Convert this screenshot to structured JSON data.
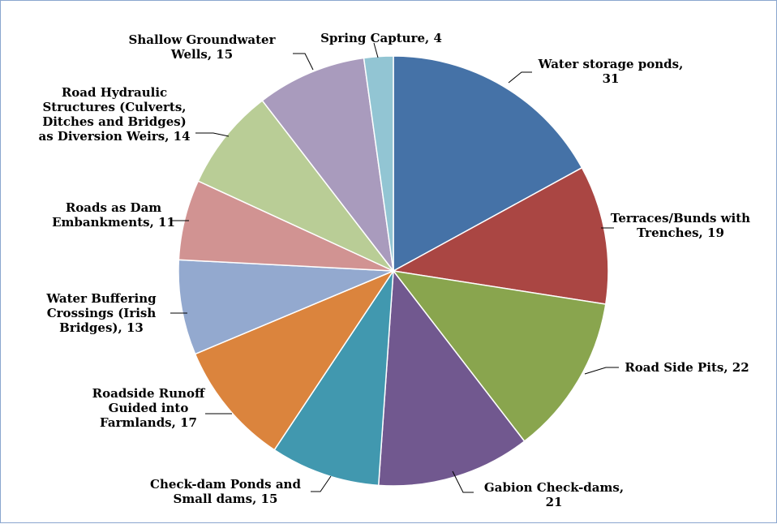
{
  "chart_data": {
    "type": "pie",
    "categories": [
      "Water storage ponds",
      "Terraces/Bunds with Trenches",
      "Road Side Pits",
      "Gabion Check-dams",
      "Check-dam Ponds and Small dams",
      "Roadside Runoff Guided into Farmlands",
      "Water Buffering Crossings (Irish Bridges)",
      "Roads as Dam Embankments",
      "Road Hydraulic Structures (Culverts, Ditches and Bridges) as Diversion Weirs",
      "Shallow Groundwater Wells",
      "Spring Capture"
    ],
    "values": [
      31,
      19,
      22,
      21,
      15,
      17,
      13,
      11,
      14,
      15,
      4
    ],
    "colors": [
      "#4572a7",
      "#aa4643",
      "#89a54e",
      "#71588f",
      "#4198af",
      "#db843d",
      "#93a9cf",
      "#d19392",
      "#b9cd96",
      "#a99bbd",
      "#92c5d3"
    ],
    "labels": [
      [
        "Water storage ponds,",
        "31"
      ],
      [
        "Terraces/Bunds with",
        "Trenches, 19"
      ],
      [
        "Road Side Pits, 22"
      ],
      [
        "Gabion Check-dams,",
        "21"
      ],
      [
        "Check-dam Ponds and",
        "Small dams, 15"
      ],
      [
        "Roadside Runoff",
        "Guided into",
        "Farmlands, 17"
      ],
      [
        "Water Buffering",
        "Crossings (Irish",
        "Bridges), 13"
      ],
      [
        "Roads as Dam",
        "Embankments, 11"
      ],
      [
        "Road Hydraulic",
        "Structures (Culverts,",
        "Ditches and Bridges)",
        "as Diversion Weirs, 14"
      ],
      [
        "Shallow Groundwater",
        "Wells, 15"
      ],
      [
        "Spring Capture, 4"
      ]
    ]
  }
}
